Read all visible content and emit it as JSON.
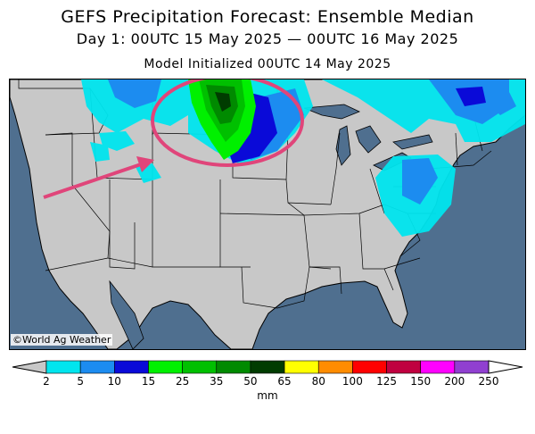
{
  "header": {
    "title": "GEFS Precipitation Forecast: Ensemble Median",
    "valid": "Day 1: 00UTC 15 May 2025 — 00UTC 16 May 2025",
    "init": "Model Initialized 00UTC 14 May 2025"
  },
  "map": {
    "copyright": "©World Ag Weather",
    "highlight_color": "#e0457a"
  },
  "legend": {
    "unit": "mm",
    "ticks": [
      "2",
      "5",
      "10",
      "15",
      "25",
      "35",
      "50",
      "65",
      "80",
      "100",
      "125",
      "150",
      "200",
      "250"
    ],
    "colors": [
      "#00e5ee",
      "#1c8cf0",
      "#0a0ad8",
      "#00f000",
      "#00c000",
      "#008a00",
      "#003c00",
      "#ffff00",
      "#ff8c00",
      "#ff0000",
      "#c00040",
      "#ff00ff",
      "#9040d0"
    ],
    "under_color": "#c8c8c8",
    "over_color": "#ffffff"
  }
}
